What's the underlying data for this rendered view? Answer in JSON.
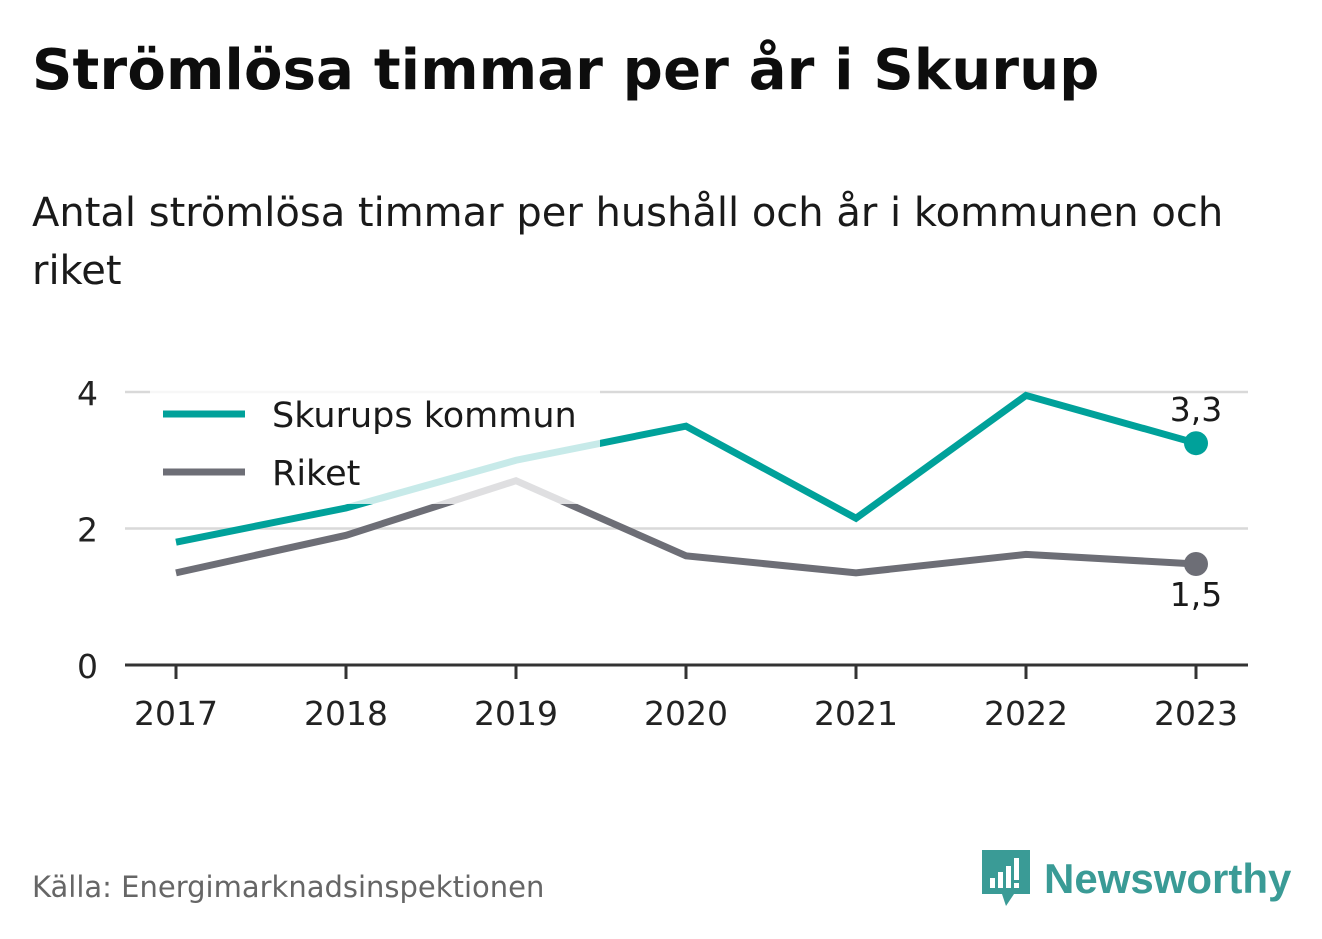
{
  "title": "Strömlösa timmar per år i Skurup",
  "subtitle": "Antal strömlösa timmar per hushåll och år i kommunen och riket",
  "source": "Källa: Energimarknadsinspektionen",
  "brand": {
    "name": "Newsworthy",
    "color": "#3a9b96",
    "icon": "bar-chart-speech-bubble-icon"
  },
  "colors": {
    "skurup": "#00a19a",
    "riket": "#6d6e76",
    "grid": "#d9d9d9",
    "axis": "#333333"
  },
  "chart_data": {
    "type": "line",
    "x": [
      "2017",
      "2018",
      "2019",
      "2020",
      "2021",
      "2022",
      "2023"
    ],
    "ylim": [
      0,
      4
    ],
    "yticks": [
      "0",
      "2",
      "4"
    ],
    "grid": true,
    "legend_position": "top-left",
    "series": [
      {
        "name": "Skurups kommun",
        "values": [
          1.8,
          2.3,
          3.0,
          3.5,
          2.15,
          3.95,
          3.25
        ],
        "end_label": "3,3"
      },
      {
        "name": "Riket",
        "values": [
          1.35,
          1.9,
          2.7,
          1.6,
          1.35,
          1.62,
          1.48
        ],
        "end_label": "1,5"
      }
    ]
  }
}
